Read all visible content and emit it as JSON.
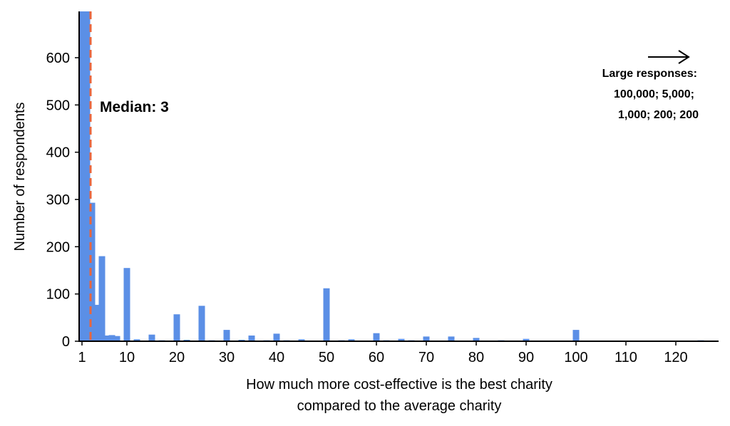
{
  "chart_data": {
    "type": "bar",
    "xlabel_lines": [
      "How much more cost-effective is the best charity",
      "compared to the average charity"
    ],
    "ylabel": "Number of respondents",
    "xlim": [
      1,
      128
    ],
    "ylim": [
      0,
      700
    ],
    "xticks": [
      1,
      10,
      20,
      30,
      40,
      50,
      60,
      70,
      80,
      90,
      100,
      110,
      120
    ],
    "yticks": [
      0,
      100,
      200,
      300,
      400,
      500,
      600
    ],
    "bar_color": "#5b8fe6",
    "median_color": "#e8663d",
    "median": 3,
    "median_label": "Median: 3",
    "large_responses_title": "Large responses:",
    "large_responses_lines": [
      "100,000; 5,000;",
      "1,000; 200; 200"
    ],
    "bars": [
      {
        "x": 1,
        "y": 700
      },
      {
        "x": 1.5,
        "y": 140
      },
      {
        "x": 2,
        "y": 700
      },
      {
        "x": 3,
        "y": 293
      },
      {
        "x": 4,
        "y": 77
      },
      {
        "x": 5,
        "y": 180
      },
      {
        "x": 6,
        "y": 12
      },
      {
        "x": 7,
        "y": 13
      },
      {
        "x": 8,
        "y": 11
      },
      {
        "x": 10,
        "y": 155
      },
      {
        "x": 12,
        "y": 4
      },
      {
        "x": 15,
        "y": 14
      },
      {
        "x": 17,
        "y": 2
      },
      {
        "x": 20,
        "y": 57
      },
      {
        "x": 22,
        "y": 3
      },
      {
        "x": 25,
        "y": 75
      },
      {
        "x": 27,
        "y": 2
      },
      {
        "x": 30,
        "y": 24
      },
      {
        "x": 33,
        "y": 3
      },
      {
        "x": 35,
        "y": 12
      },
      {
        "x": 38,
        "y": 2
      },
      {
        "x": 40,
        "y": 16
      },
      {
        "x": 42,
        "y": 2
      },
      {
        "x": 45,
        "y": 4
      },
      {
        "x": 50,
        "y": 112
      },
      {
        "x": 53,
        "y": 2
      },
      {
        "x": 55,
        "y": 4
      },
      {
        "x": 60,
        "y": 17
      },
      {
        "x": 62,
        "y": 2
      },
      {
        "x": 65,
        "y": 5
      },
      {
        "x": 67,
        "y": 2
      },
      {
        "x": 70,
        "y": 10
      },
      {
        "x": 75,
        "y": 10
      },
      {
        "x": 80,
        "y": 7
      },
      {
        "x": 85,
        "y": 2
      },
      {
        "x": 90,
        "y": 5
      },
      {
        "x": 100,
        "y": 24
      },
      {
        "x": 125,
        "y": 2
      }
    ]
  }
}
